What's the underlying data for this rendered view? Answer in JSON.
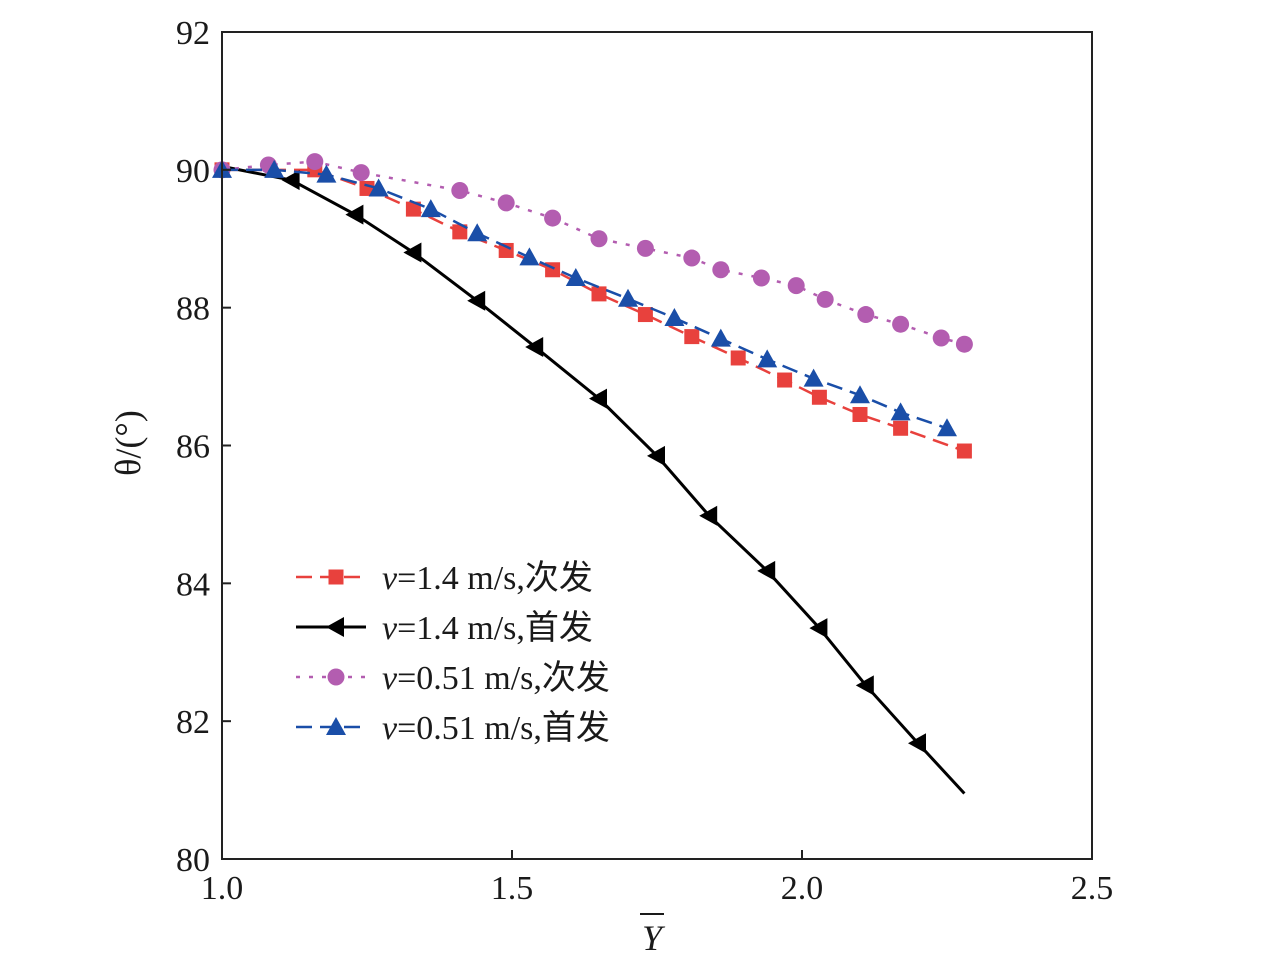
{
  "chart_data": {
    "type": "line",
    "xlabel": "Y",
    "ylabel": "θ/(°)",
    "xlim": [
      1.0,
      2.5
    ],
    "ylim": [
      80,
      92
    ],
    "xticks": [
      "1.0",
      "1.5",
      "2.0",
      "2.5"
    ],
    "yticks": [
      "80",
      "82",
      "84",
      "86",
      "88",
      "90",
      "92"
    ],
    "legend_position": "lower-left",
    "grid": false,
    "series": [
      {
        "name": "v=1.4 m/s,次发",
        "legend_var": "v",
        "legend_rest": "=1.4 m/s,次发",
        "color": "#e8413d",
        "marker": "square",
        "line_style": "dashed",
        "x": [
          1.0,
          1.16,
          1.25,
          1.33,
          1.41,
          1.49,
          1.57,
          1.65,
          1.73,
          1.81,
          1.89,
          1.97,
          2.03,
          2.1,
          2.17,
          2.28
        ],
        "y": [
          90.0,
          90.0,
          89.73,
          89.43,
          89.1,
          88.83,
          88.55,
          88.2,
          87.9,
          87.58,
          87.27,
          86.95,
          86.7,
          86.45,
          86.25,
          85.92
        ]
      },
      {
        "name": "v=1.4 m/s,首发",
        "legend_var": "v",
        "legend_rest": "=1.4 m/s,首发",
        "color": "#000000",
        "marker": "triangle-left",
        "line_style": "solid",
        "x": [
          1.0,
          1.12,
          1.23,
          1.33,
          1.44,
          1.54,
          1.65,
          1.75,
          1.84,
          1.94,
          2.03,
          2.11,
          2.2,
          2.28
        ],
        "y": [
          90.05,
          89.85,
          89.35,
          88.8,
          88.1,
          87.43,
          86.68,
          85.85,
          84.98,
          84.18,
          83.35,
          82.52,
          81.68,
          80.95
        ]
      },
      {
        "name": "v=0.51 m/s,次发",
        "legend_var": "v",
        "legend_rest": "=0.51 m/s,次发",
        "color": "#b35db0",
        "marker": "circle",
        "line_style": "dotted",
        "x": [
          1.0,
          1.08,
          1.16,
          1.24,
          1.41,
          1.49,
          1.57,
          1.65,
          1.73,
          1.81,
          1.86,
          1.93,
          1.99,
          2.04,
          2.11,
          2.17,
          2.24,
          2.28
        ],
        "y": [
          90.0,
          90.07,
          90.12,
          89.96,
          89.7,
          89.52,
          89.3,
          89.0,
          88.86,
          88.72,
          88.55,
          88.43,
          88.32,
          88.12,
          87.9,
          87.76,
          87.56,
          87.47
        ]
      },
      {
        "name": "v=0.51 m/s,首发",
        "legend_var": "v",
        "legend_rest": "=0.51 m/s,首发",
        "color": "#1a4ea8",
        "marker": "triangle-up",
        "line_style": "dashed",
        "x": [
          1.0,
          1.09,
          1.18,
          1.27,
          1.36,
          1.44,
          1.53,
          1.61,
          1.7,
          1.78,
          1.86,
          1.94,
          2.02,
          2.1,
          2.17,
          2.25
        ],
        "y": [
          90.0,
          90.0,
          89.93,
          89.73,
          89.43,
          89.08,
          88.73,
          88.43,
          88.13,
          87.85,
          87.55,
          87.25,
          86.97,
          86.73,
          86.48,
          86.25
        ]
      }
    ]
  }
}
